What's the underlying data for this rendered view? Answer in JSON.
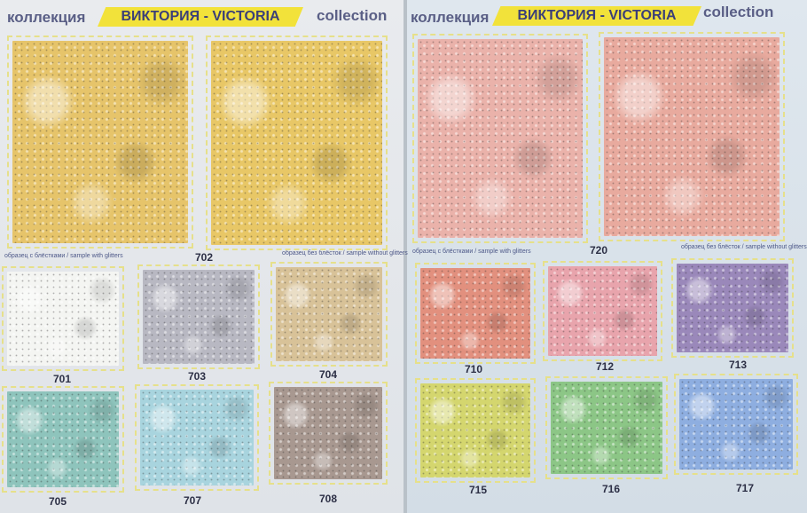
{
  "left_page": {
    "header": {
      "left": "коллекция",
      "banner": "ВИКТОРИЯ - VICTORIA",
      "right": "collection"
    },
    "caption_with": "образец с блёстками / sample with glitters",
    "caption_without": "образец без блёсток / sample without glitters",
    "swatches": [
      {
        "code": "702",
        "color": "#e6c46a",
        "label_shown": false
      },
      {
        "code": "702",
        "color": "#e8c766",
        "label_shown": true
      },
      {
        "code": "701",
        "color": "#f4f5f2",
        "label_shown": true
      },
      {
        "code": "703",
        "color": "#b8b8c2",
        "label_shown": true
      },
      {
        "code": "704",
        "color": "#d8c298",
        "label_shown": true
      },
      {
        "code": "705",
        "color": "#8ec4bc",
        "label_shown": true
      },
      {
        "code": "707",
        "color": "#a8d4de",
        "label_shown": true
      },
      {
        "code": "708",
        "color": "#a89890",
        "label_shown": true
      }
    ]
  },
  "right_page": {
    "header": {
      "left": "коллекция",
      "banner": "ВИКТОРИЯ - VICTORIA",
      "right": "collection"
    },
    "caption_with": "образец с блёстками / sample with glitters",
    "caption_without": "образец без блёсток / sample without glitters",
    "swatches": [
      {
        "code": "720",
        "color": "#eab2aa",
        "label_shown": false
      },
      {
        "code": "720",
        "color": "#e8aa9e",
        "label_shown": true
      },
      {
        "code": "710",
        "color": "#e2907e",
        "label_shown": true
      },
      {
        "code": "712",
        "color": "#e8a4ac",
        "label_shown": true
      },
      {
        "code": "713",
        "color": "#9a88ba",
        "label_shown": true
      },
      {
        "code": "715",
        "color": "#d4d66e",
        "label_shown": true
      },
      {
        "code": "716",
        "color": "#8cc686",
        "label_shown": true
      },
      {
        "code": "717",
        "color": "#8eaee0",
        "label_shown": true
      }
    ]
  }
}
